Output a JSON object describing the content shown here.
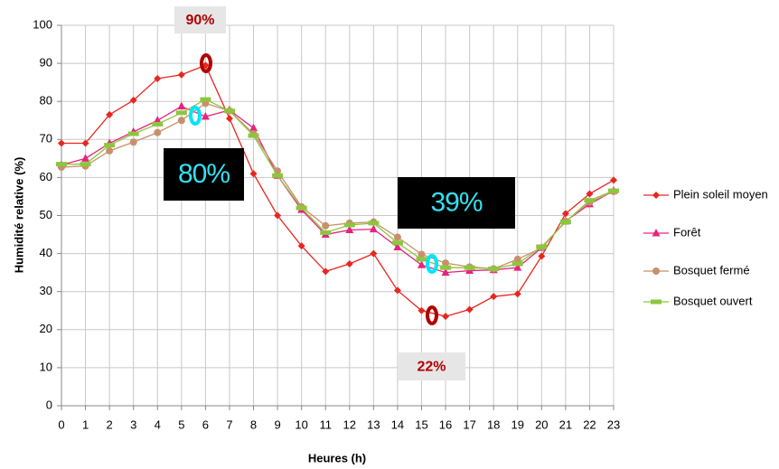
{
  "chart_data": {
    "type": "line",
    "y_label": "Humidité relative (%)",
    "x_label": "Heures (h)",
    "x": [
      0,
      1,
      2,
      3,
      4,
      5,
      6,
      7,
      8,
      9,
      10,
      11,
      12,
      13,
      14,
      15,
      16,
      17,
      18,
      19,
      20,
      21,
      22,
      23
    ],
    "xlim": [
      0,
      23
    ],
    "xticks": [
      0,
      1,
      2,
      3,
      4,
      5,
      6,
      7,
      8,
      9,
      10,
      11,
      12,
      13,
      14,
      15,
      16,
      17,
      18,
      19,
      20,
      21,
      22,
      23
    ],
    "ylim": [
      0,
      100
    ],
    "yticks": [
      0,
      10,
      20,
      30,
      40,
      50,
      60,
      70,
      80,
      90,
      100
    ],
    "grid": true,
    "legend": "right",
    "series": [
      {
        "name": "Plein soleil moyen",
        "color": "#e8261f",
        "marker": "diamond",
        "values": [
          69,
          69,
          76.5,
          80.3,
          86,
          87,
          89.5,
          75.5,
          61,
          50,
          42,
          35.3,
          37.3,
          40,
          30.3,
          25,
          23.5,
          25.3,
          28.7,
          29.4,
          39.3,
          50.5,
          55.7,
          59.3
        ]
      },
      {
        "name": "Forêt",
        "color": "#e8237e",
        "marker": "triangle",
        "values": [
          63.3,
          65,
          69,
          72,
          75,
          78.7,
          76,
          77.7,
          73,
          60.5,
          51.5,
          45,
          46.2,
          46.4,
          41.7,
          37,
          35,
          35.5,
          35.7,
          36.3,
          41.5,
          48.5,
          53,
          56.5
        ]
      },
      {
        "name": "Bosquet fermé",
        "color": "#c8906a",
        "marker": "circle",
        "values": [
          62.7,
          63,
          67,
          69.3,
          71.8,
          75,
          79.5,
          77.5,
          71.5,
          61.7,
          52.3,
          47.3,
          48,
          48.3,
          44.3,
          39.8,
          37.5,
          36.5,
          36,
          38.5,
          41.5,
          48.5,
          53.5,
          56.3
        ]
      },
      {
        "name": "Bosquet ouvert",
        "color": "#8cc63f",
        "marker": "dash",
        "values": [
          63.5,
          63.5,
          68.5,
          71.5,
          74,
          77,
          80.5,
          77.5,
          71,
          60.5,
          52,
          45.5,
          47.5,
          48,
          42.8,
          38.5,
          36.3,
          36.3,
          36,
          37.3,
          41.8,
          48.3,
          54,
          56.5
        ]
      }
    ],
    "annotations": [
      {
        "text": "90%",
        "style": "gray"
      },
      {
        "text": "80%",
        "style": "black"
      },
      {
        "text": "39%",
        "style": "black"
      },
      {
        "text": "22%",
        "style": "gray"
      }
    ]
  }
}
